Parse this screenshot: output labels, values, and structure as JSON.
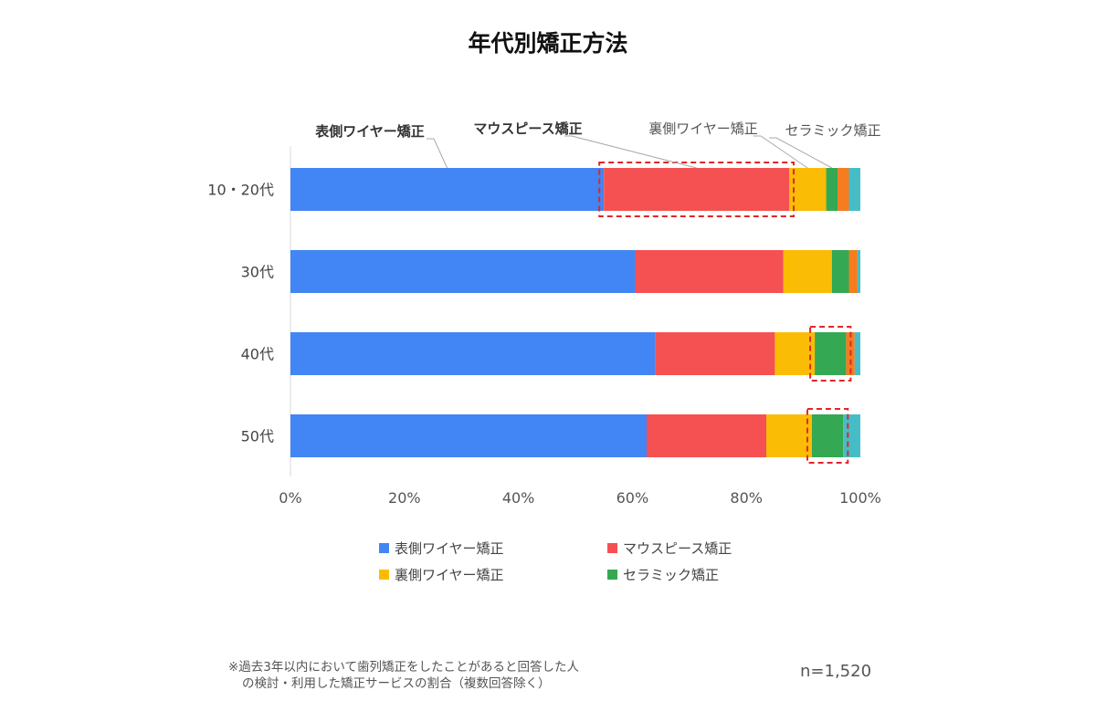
{
  "chart_data": {
    "type": "bar",
    "orientation": "horizontal",
    "stacked": true,
    "title": "年代別矯正方法",
    "categories": [
      "10・20代",
      "30代",
      "40代",
      "50代"
    ],
    "xlim": [
      0,
      100
    ],
    "x_ticks": [
      "0%",
      "20%",
      "40%",
      "60%",
      "80%",
      "100%"
    ],
    "series": [
      {
        "name": "表側ワイヤー矯正",
        "color": "#4285F4",
        "values": [
          55.0,
          60.5,
          64.0,
          62.5
        ]
      },
      {
        "name": "マウスピース矯正",
        "color": "#F55152",
        "values": [
          32.5,
          26.0,
          21.0,
          21.0
        ]
      },
      {
        "name": "裏側ワイヤー矯正",
        "color": "#FBBC05",
        "values": [
          6.5,
          8.5,
          7.0,
          8.0
        ]
      },
      {
        "name": "セラミック矯正",
        "color": "#34A853",
        "values": [
          2.0,
          3.0,
          5.5,
          5.5
        ]
      },
      {
        "name": "",
        "color": "#F57C1F",
        "values": [
          2.0,
          1.5,
          1.5,
          0.0
        ]
      },
      {
        "name": "",
        "color": "#46BDC6",
        "values": [
          2.0,
          0.5,
          1.0,
          3.0
        ]
      }
    ],
    "highlight_boxes": [
      {
        "category": "10・20代",
        "series": "マウスピース矯正"
      },
      {
        "category": "40代",
        "series": "セラミック矯正"
      },
      {
        "category": "50代",
        "series": "セラミック矯正"
      }
    ],
    "callouts": [
      {
        "text": "表側ワイヤー矯正",
        "bold": true,
        "category": "10・20代",
        "series": "表側ワイヤー矯正"
      },
      {
        "text": "マウスピース矯正",
        "bold": true,
        "category": "10・20代",
        "series": "マウスピース矯正"
      },
      {
        "text": "裏側ワイヤー矯正",
        "bold": false,
        "category": "10・20代",
        "series": "裏側ワイヤー矯正"
      },
      {
        "text": "セラミック矯正",
        "bold": false,
        "category": "10・20代",
        "series": "セラミック矯正"
      }
    ],
    "legend": {
      "placement": "bottom",
      "items": [
        "表側ワイヤー矯正",
        "マウスピース矯正",
        "裏側ワイヤー矯正",
        "セラミック矯正"
      ]
    }
  },
  "footnote": {
    "line1": "※過去3年以内において歯列矯正をしたことがあると回答した人",
    "line2": "の検討・利用した矯正サービスの割合（複数回答除く）"
  },
  "sample_size": "n=1,520"
}
